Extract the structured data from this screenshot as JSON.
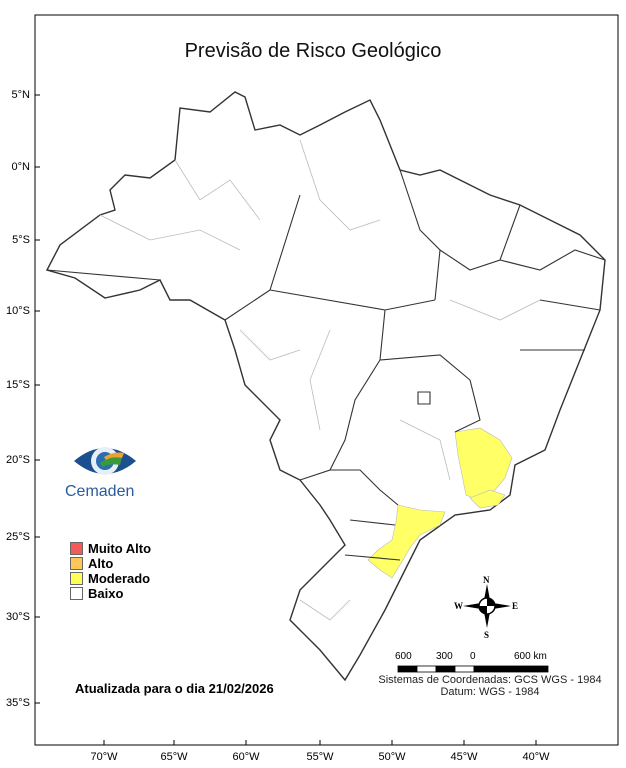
{
  "title": "Previsão de Risco Geológico",
  "lat_labels": [
    "5°N",
    "0°N",
    "5°S",
    "10°S",
    "15°S",
    "20°S",
    "25°S",
    "30°S",
    "35°S"
  ],
  "lon_labels": [
    "70°W",
    "65°W",
    "60°W",
    "55°W",
    "50°W",
    "45°W",
    "40°W"
  ],
  "logo": {
    "text": "Cemaden"
  },
  "legend": [
    {
      "label": "Muito Alto",
      "color": "#f55a5a"
    },
    {
      "label": "Alto",
      "color": "#ffc658"
    },
    {
      "label": "Moderado",
      "color": "#ffff5a"
    },
    {
      "label": "Baixo",
      "color": "#ffffff"
    }
  ],
  "updated": "Atualizada para o dia 21/02/2026",
  "compass": {
    "n": "N",
    "s": "S",
    "e": "E",
    "w": "W"
  },
  "scale": {
    "labels": [
      "600",
      "300",
      "0",
      "600 km"
    ]
  },
  "coord_system": "Sistemas de Coordenadas: GCS WGS - 1984",
  "datum": "Datum: WGS - 1984"
}
